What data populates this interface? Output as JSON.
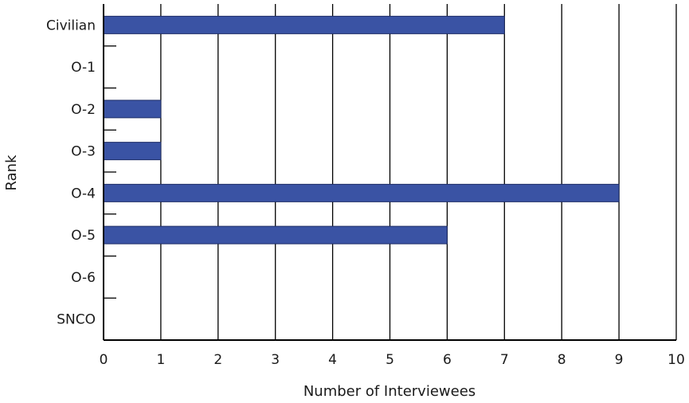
{
  "chart_data": {
    "type": "bar",
    "orientation": "horizontal",
    "categories": [
      "Civilian",
      "O-1",
      "O-2",
      "O-3",
      "O-4",
      "O-5",
      "O-6",
      "SNCO"
    ],
    "values": [
      7,
      0,
      1,
      1,
      9,
      6,
      0,
      0
    ],
    "xlabel": "Number of Interviewees",
    "ylabel": "Rank",
    "xlim": [
      0,
      10
    ],
    "xticks": [
      "0",
      "1",
      "2",
      "3",
      "4",
      "5",
      "6",
      "7",
      "8",
      "9",
      "10"
    ],
    "grid": "vertical",
    "legend": "none",
    "bar_color": "#3a53a4",
    "grid_color": "#000000"
  }
}
